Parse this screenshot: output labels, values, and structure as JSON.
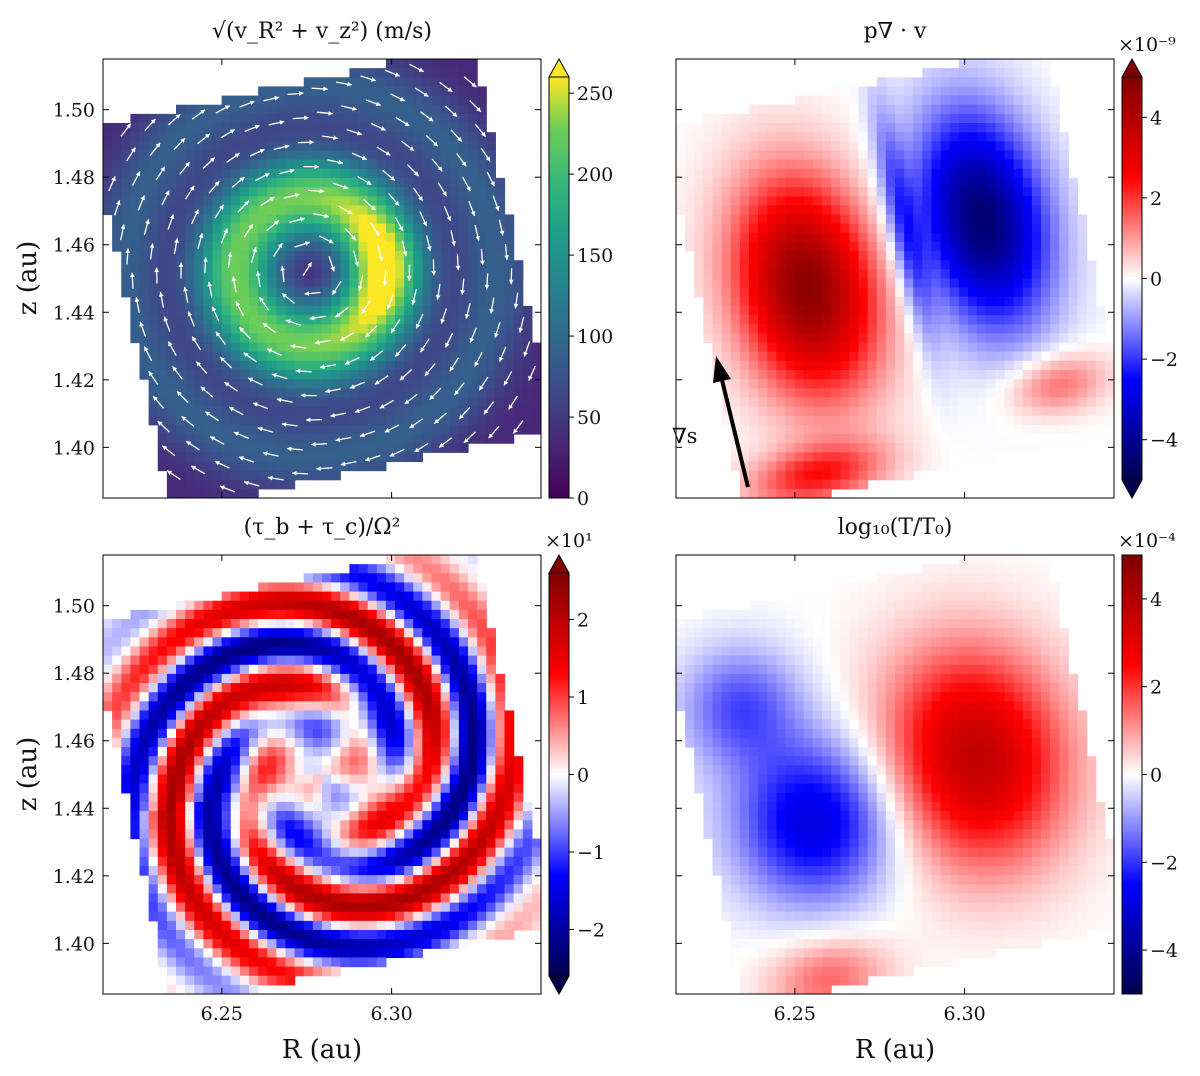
{
  "figure": {
    "shared_xlabel": "R (au)",
    "shared_ylabel": "z (au)",
    "x_ticks": [
      "6.25",
      "6.30"
    ],
    "y_ticks": [
      "1.40",
      "1.42",
      "1.44",
      "1.46",
      "1.48",
      "1.50"
    ]
  },
  "chart_data": [
    {
      "type": "heatmap",
      "panel": "top-left",
      "title": "√(v_R² + v_z²) (m/s)",
      "colormap": "viridis",
      "quiver": true,
      "xlim": [
        6.215,
        6.344
      ],
      "ylim": [
        1.385,
        1.515
      ],
      "grid": false,
      "colorbar": {
        "ticks": [
          "0",
          "50",
          "100",
          "150",
          "200",
          "250"
        ],
        "range": [
          0,
          260
        ],
        "extend": "max",
        "exponent": ""
      },
      "annotations": []
    },
    {
      "type": "heatmap",
      "panel": "top-right",
      "title": "p∇ · v",
      "colormap": "seismic",
      "xlim": [
        6.215,
        6.344
      ],
      "ylim": [
        1.385,
        1.515
      ],
      "grid": false,
      "colorbar": {
        "ticks": [
          "4",
          "2",
          "0",
          "−2",
          "−4"
        ],
        "range": [
          -5,
          5
        ],
        "extend": "both",
        "exponent": "×10⁻⁹"
      },
      "annotations": [
        {
          "text": "∇s",
          "kind": "arrow"
        }
      ]
    },
    {
      "type": "heatmap",
      "panel": "bottom-left",
      "title": "(τ_b + τ_c)/Ω²",
      "colormap": "seismic",
      "xlim": [
        6.215,
        6.344
      ],
      "ylim": [
        1.385,
        1.515
      ],
      "grid": false,
      "colorbar": {
        "ticks": [
          "2",
          "1",
          "0",
          "−1",
          "−2"
        ],
        "range": [
          -2.6,
          2.6
        ],
        "extend": "both",
        "exponent": "×10¹"
      },
      "annotations": []
    },
    {
      "type": "heatmap",
      "panel": "bottom-right",
      "title": "log₁₀(T/T₀)",
      "colormap": "seismic",
      "xlim": [
        6.215,
        6.344
      ],
      "ylim": [
        1.385,
        1.515
      ],
      "grid": false,
      "colorbar": {
        "ticks": [
          "4",
          "2",
          "0",
          "−2",
          "−4"
        ],
        "range": [
          -5,
          5
        ],
        "extend": "none",
        "exponent": "×10⁻⁴"
      },
      "annotations": []
    }
  ]
}
